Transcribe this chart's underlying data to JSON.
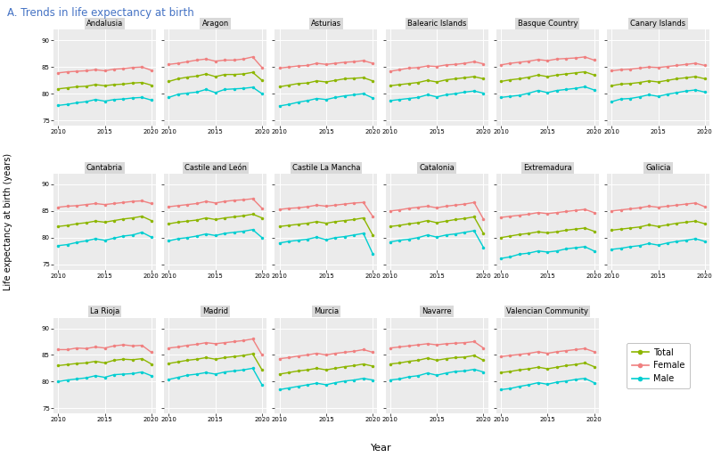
{
  "title": "A. Trends in life expectancy at birth",
  "title_color": "#4472C4",
  "ylabel": "Life expectancy at birth (years)",
  "xlabel": "Year",
  "years": [
    2010,
    2011,
    2012,
    2013,
    2014,
    2015,
    2016,
    2017,
    2018,
    2019,
    2020
  ],
  "colors": {
    "Total": "#8DB600",
    "Female": "#F08080",
    "Male": "#00CED1"
  },
  "series_order": [
    "Total",
    "Female",
    "Male"
  ],
  "ylim": [
    74,
    92
  ],
  "yticks": [
    75,
    80,
    85,
    90
  ],
  "communities": {
    "Andalusia": {
      "Total": [
        80.9,
        81.1,
        81.3,
        81.4,
        81.7,
        81.5,
        81.7,
        81.8,
        82.0,
        82.1,
        81.6
      ],
      "Female": [
        83.9,
        84.1,
        84.2,
        84.3,
        84.5,
        84.3,
        84.6,
        84.7,
        84.9,
        85.0,
        84.4
      ],
      "Male": [
        77.8,
        78.0,
        78.3,
        78.5,
        78.9,
        78.6,
        78.9,
        79.0,
        79.2,
        79.3,
        78.8
      ]
    },
    "Aragon": {
      "Total": [
        82.3,
        82.8,
        83.1,
        83.3,
        83.7,
        83.2,
        83.6,
        83.6,
        83.7,
        84.0,
        82.5
      ],
      "Female": [
        85.5,
        85.7,
        86.0,
        86.3,
        86.5,
        86.1,
        86.3,
        86.3,
        86.5,
        86.9,
        84.9
      ],
      "Male": [
        79.3,
        79.9,
        80.1,
        80.3,
        80.8,
        80.2,
        80.8,
        80.9,
        81.0,
        81.2,
        80.0
      ]
    },
    "Asturias": {
      "Total": [
        81.3,
        81.6,
        81.9,
        82.0,
        82.4,
        82.2,
        82.5,
        82.8,
        82.9,
        83.0,
        82.4
      ],
      "Female": [
        84.8,
        85.0,
        85.2,
        85.3,
        85.7,
        85.5,
        85.7,
        85.9,
        86.0,
        86.2,
        85.7
      ],
      "Male": [
        77.7,
        78.0,
        78.4,
        78.7,
        79.1,
        78.9,
        79.3,
        79.6,
        79.8,
        80.0,
        79.2
      ]
    },
    "Balearic Islands": {
      "Total": [
        81.5,
        81.7,
        81.9,
        82.1,
        82.5,
        82.2,
        82.6,
        82.8,
        83.0,
        83.2,
        82.8
      ],
      "Female": [
        84.2,
        84.5,
        84.8,
        84.9,
        85.2,
        85.1,
        85.4,
        85.5,
        85.7,
        86.0,
        85.6
      ],
      "Male": [
        78.7,
        78.9,
        79.1,
        79.3,
        79.8,
        79.4,
        79.8,
        80.0,
        80.3,
        80.5,
        80.1
      ]
    },
    "Basque Country": {
      "Total": [
        82.3,
        82.6,
        82.8,
        83.1,
        83.5,
        83.2,
        83.5,
        83.7,
        83.9,
        84.1,
        83.5
      ],
      "Female": [
        85.4,
        85.7,
        85.9,
        86.1,
        86.4,
        86.2,
        86.5,
        86.6,
        86.7,
        86.9,
        86.3
      ],
      "Male": [
        79.3,
        79.5,
        79.7,
        80.1,
        80.6,
        80.2,
        80.6,
        80.8,
        81.0,
        81.3,
        80.7
      ]
    },
    "Canary Islands": {
      "Total": [
        81.5,
        81.8,
        81.9,
        82.1,
        82.4,
        82.2,
        82.5,
        82.8,
        83.0,
        83.2,
        82.8
      ],
      "Female": [
        84.3,
        84.5,
        84.6,
        84.8,
        85.0,
        84.9,
        85.1,
        85.3,
        85.5,
        85.7,
        85.3
      ],
      "Male": [
        78.5,
        79.0,
        79.1,
        79.4,
        79.8,
        79.5,
        79.9,
        80.2,
        80.5,
        80.7,
        80.3
      ]
    },
    "Cantabria": {
      "Total": [
        82.1,
        82.3,
        82.6,
        82.8,
        83.1,
        82.9,
        83.2,
        83.5,
        83.7,
        84.0,
        83.2
      ],
      "Female": [
        85.7,
        85.9,
        86.0,
        86.2,
        86.4,
        86.2,
        86.4,
        86.6,
        86.8,
        86.9,
        86.4
      ],
      "Male": [
        78.5,
        78.7,
        79.1,
        79.4,
        79.8,
        79.5,
        79.9,
        80.3,
        80.5,
        81.0,
        80.1
      ]
    },
    "Castile and León": {
      "Total": [
        82.6,
        82.9,
        83.1,
        83.3,
        83.7,
        83.4,
        83.7,
        83.9,
        84.1,
        84.4,
        83.7
      ],
      "Female": [
        85.8,
        86.0,
        86.2,
        86.4,
        86.8,
        86.5,
        86.8,
        87.0,
        87.1,
        87.3,
        85.5
      ],
      "Male": [
        79.4,
        79.8,
        80.0,
        80.3,
        80.7,
        80.4,
        80.8,
        81.0,
        81.2,
        81.5,
        80.0
      ]
    },
    "Castile La Mancha": {
      "Total": [
        82.1,
        82.3,
        82.5,
        82.7,
        83.0,
        82.7,
        83.0,
        83.2,
        83.4,
        83.7,
        80.5
      ],
      "Female": [
        85.3,
        85.5,
        85.6,
        85.8,
        86.1,
        85.9,
        86.1,
        86.3,
        86.5,
        86.6,
        84.0
      ],
      "Male": [
        79.0,
        79.3,
        79.5,
        79.7,
        80.1,
        79.6,
        80.0,
        80.2,
        80.5,
        80.8,
        77.0
      ]
    },
    "Catalonia": {
      "Total": [
        82.1,
        82.3,
        82.6,
        82.8,
        83.2,
        82.8,
        83.1,
        83.4,
        83.6,
        83.9,
        80.8
      ],
      "Female": [
        85.0,
        85.2,
        85.5,
        85.7,
        85.9,
        85.6,
        85.9,
        86.1,
        86.3,
        86.6,
        83.5
      ],
      "Male": [
        79.2,
        79.5,
        79.7,
        80.0,
        80.5,
        80.1,
        80.5,
        80.7,
        81.0,
        81.3,
        78.2
      ]
    },
    "Extremadura": {
      "Total": [
        80.0,
        80.3,
        80.6,
        80.8,
        81.1,
        80.9,
        81.1,
        81.4,
        81.6,
        81.8,
        81.2
      ],
      "Female": [
        83.8,
        84.0,
        84.2,
        84.4,
        84.7,
        84.5,
        84.7,
        84.9,
        85.1,
        85.3,
        84.7
      ],
      "Male": [
        76.1,
        76.4,
        76.9,
        77.1,
        77.5,
        77.3,
        77.5,
        77.9,
        78.1,
        78.3,
        77.5
      ]
    },
    "Galicia": {
      "Total": [
        81.4,
        81.6,
        81.8,
        82.0,
        82.4,
        82.1,
        82.4,
        82.7,
        82.9,
        83.1,
        82.6
      ],
      "Female": [
        85.0,
        85.2,
        85.4,
        85.6,
        85.9,
        85.7,
        85.9,
        86.1,
        86.3,
        86.5,
        85.8
      ],
      "Male": [
        77.8,
        78.0,
        78.3,
        78.5,
        78.9,
        78.6,
        79.0,
        79.3,
        79.5,
        79.8,
        79.3
      ]
    },
    "La Rioja": {
      "Total": [
        83.0,
        83.2,
        83.4,
        83.5,
        83.8,
        83.5,
        84.0,
        84.2,
        84.1,
        84.3,
        83.3
      ],
      "Female": [
        86.0,
        86.0,
        86.3,
        86.2,
        86.5,
        86.3,
        86.7,
        86.9,
        86.7,
        86.8,
        85.5
      ],
      "Male": [
        80.0,
        80.3,
        80.5,
        80.7,
        81.1,
        80.8,
        81.3,
        81.4,
        81.5,
        81.8,
        81.1
      ]
    },
    "Madrid": {
      "Total": [
        83.4,
        83.7,
        84.0,
        84.2,
        84.5,
        84.2,
        84.5,
        84.7,
        84.9,
        85.2,
        82.2
      ],
      "Female": [
        86.3,
        86.5,
        86.8,
        87.0,
        87.3,
        87.1,
        87.3,
        87.5,
        87.7,
        88.0,
        85.0
      ],
      "Male": [
        80.4,
        80.8,
        81.2,
        81.4,
        81.7,
        81.4,
        81.8,
        82.0,
        82.2,
        82.5,
        79.4
      ]
    },
    "Murcia": {
      "Total": [
        81.4,
        81.7,
        82.0,
        82.2,
        82.5,
        82.2,
        82.5,
        82.8,
        83.0,
        83.3,
        82.9
      ],
      "Female": [
        84.3,
        84.5,
        84.8,
        85.0,
        85.3,
        85.0,
        85.3,
        85.5,
        85.7,
        86.0,
        85.5
      ],
      "Male": [
        78.5,
        78.8,
        79.1,
        79.4,
        79.7,
        79.4,
        79.8,
        80.1,
        80.3,
        80.6,
        80.3
      ]
    },
    "Navarre": {
      "Total": [
        83.3,
        83.5,
        83.8,
        84.0,
        84.4,
        84.0,
        84.3,
        84.5,
        84.6,
        84.9,
        84.0
      ],
      "Female": [
        86.3,
        86.5,
        86.7,
        86.9,
        87.1,
        86.9,
        87.1,
        87.2,
        87.3,
        87.5,
        86.3
      ],
      "Male": [
        80.3,
        80.5,
        80.9,
        81.1,
        81.6,
        81.2,
        81.6,
        81.9,
        82.0,
        82.3,
        81.8
      ]
    },
    "Valencian Community": {
      "Total": [
        81.7,
        81.9,
        82.2,
        82.4,
        82.7,
        82.4,
        82.7,
        83.0,
        83.2,
        83.5,
        82.8
      ],
      "Female": [
        84.7,
        84.9,
        85.1,
        85.3,
        85.6,
        85.3,
        85.6,
        85.8,
        86.0,
        86.2,
        85.6
      ],
      "Male": [
        78.5,
        78.7,
        79.1,
        79.4,
        79.8,
        79.5,
        79.9,
        80.1,
        80.4,
        80.6,
        79.8
      ]
    }
  },
  "order": [
    "Andalusia",
    "Aragon",
    "Asturias",
    "Balearic Islands",
    "Basque Country",
    "Canary Islands",
    "Cantabria",
    "Castile and León",
    "Castile La Mancha",
    "Catalonia",
    "Extremadura",
    "Galicia",
    "La Rioja",
    "Madrid",
    "Murcia",
    "Navarre",
    "Valencian Community"
  ],
  "panel_bg": "#EBEBEB",
  "fig_bg": "#FFFFFF",
  "grid_color": "#FFFFFF",
  "title_strip_color": "#D9D9D9",
  "marker": "o",
  "markersize": 2.5,
  "linewidth": 1.0
}
